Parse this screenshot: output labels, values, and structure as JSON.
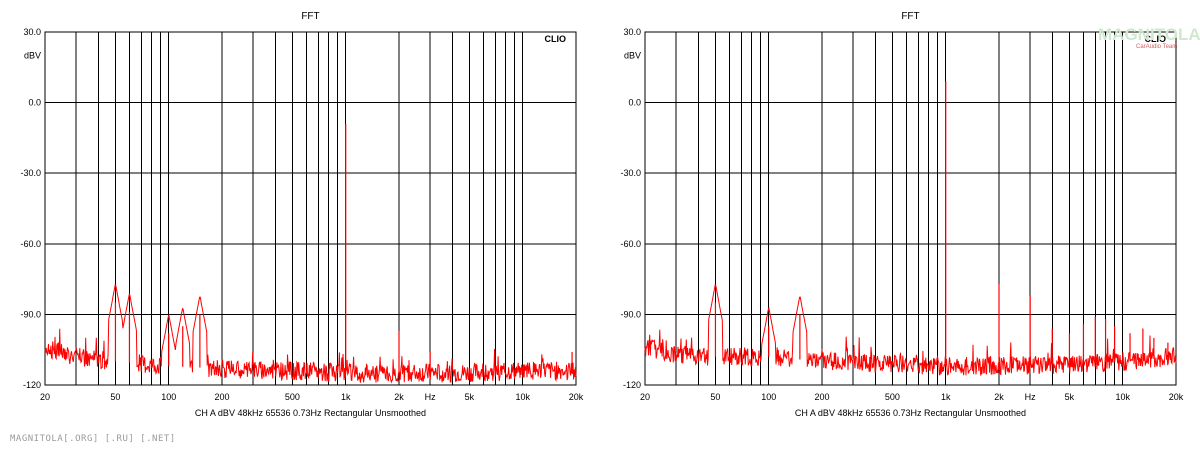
{
  "chart_data": [
    {
      "type": "line",
      "title": "FFT",
      "brand": "CLIO",
      "ylabel": "dBV",
      "xlabel": "Hz",
      "x_scale": "log",
      "xlim": [
        20,
        20000
      ],
      "ylim": [
        -120,
        30
      ],
      "grid": true,
      "x_tick_labels": [
        "20",
        "50",
        "100",
        "200",
        "500",
        "1k",
        "2k",
        "Hz",
        "5k",
        "10k",
        "20k"
      ],
      "y_tick_labels": [
        "30.0",
        "0.0",
        "-30.0",
        "-60.0",
        "-90.0",
        "-120"
      ],
      "footer": "CH A   dBV   48kHz   65536   0.73Hz   Rectangular   Unsmoothed",
      "series": [
        {
          "color": "#ff0000",
          "noise_floor": [
            [
              20,
              -104
            ],
            [
              30,
              -108
            ],
            [
              50,
              -110
            ],
            [
              100,
              -112
            ],
            [
              200,
              -113
            ],
            [
              500,
              -114
            ],
            [
              1000,
              -115
            ],
            [
              2000,
              -115
            ],
            [
              5000,
              -115
            ],
            [
              10000,
              -114
            ],
            [
              20000,
              -114
            ]
          ],
          "peaks": [
            {
              "x": 50,
              "y": -85
            },
            {
              "x": 60,
              "y": -89
            },
            {
              "x": 100,
              "y": -98
            },
            {
              "x": 120,
              "y": -95
            },
            {
              "x": 150,
              "y": -90
            },
            {
              "x": 1000,
              "y": -9
            },
            {
              "x": 2000,
              "y": -97
            },
            {
              "x": 3000,
              "y": -106
            },
            {
              "x": 19000,
              "y": -106
            }
          ]
        }
      ]
    },
    {
      "type": "line",
      "title": "FFT",
      "brand": "CLIO",
      "ylabel": "dBV",
      "xlabel": "Hz",
      "x_scale": "log",
      "xlim": [
        20,
        20000
      ],
      "ylim": [
        -120,
        30
      ],
      "grid": true,
      "x_tick_labels": [
        "20",
        "50",
        "100",
        "200",
        "500",
        "1k",
        "2k",
        "Hz",
        "5k",
        "10k",
        "20k"
      ],
      "y_tick_labels": [
        "30.0",
        "0.0",
        "-30.0",
        "-60.0",
        "-90.0",
        "-120"
      ],
      "footer": "CH A   dBV   48kHz   65536   0.73Hz   Rectangular   Unsmoothed",
      "series": [
        {
          "color": "#ff0000",
          "noise_floor": [
            [
              20,
              -104
            ],
            [
              30,
              -107
            ],
            [
              50,
              -108
            ],
            [
              100,
              -108
            ],
            [
              200,
              -110
            ],
            [
              500,
              -111
            ],
            [
              1000,
              -112
            ],
            [
              2000,
              -112
            ],
            [
              5000,
              -111
            ],
            [
              10000,
              -110
            ],
            [
              20000,
              -108
            ]
          ],
          "peaks": [
            {
              "x": 50,
              "y": -85
            },
            {
              "x": 100,
              "y": -95
            },
            {
              "x": 150,
              "y": -90
            },
            {
              "x": 1000,
              "y": 9
            },
            {
              "x": 2000,
              "y": -77
            },
            {
              "x": 3000,
              "y": -82
            },
            {
              "x": 4000,
              "y": -96
            },
            {
              "x": 5000,
              "y": -98
            },
            {
              "x": 6000,
              "y": -94
            },
            {
              "x": 7000,
              "y": -91
            },
            {
              "x": 8000,
              "y": -92
            },
            {
              "x": 9000,
              "y": -95
            },
            {
              "x": 11000,
              "y": -98
            },
            {
              "x": 13000,
              "y": -96
            },
            {
              "x": 15000,
              "y": -100
            },
            {
              "x": 18000,
              "y": -102
            }
          ]
        }
      ]
    }
  ],
  "watermark": {
    "logo": "MAGNITOLA",
    "sub": "CarAudio Team"
  },
  "site_footer": "MAGNITOLA[.ORG] [.RU] [.NET]"
}
